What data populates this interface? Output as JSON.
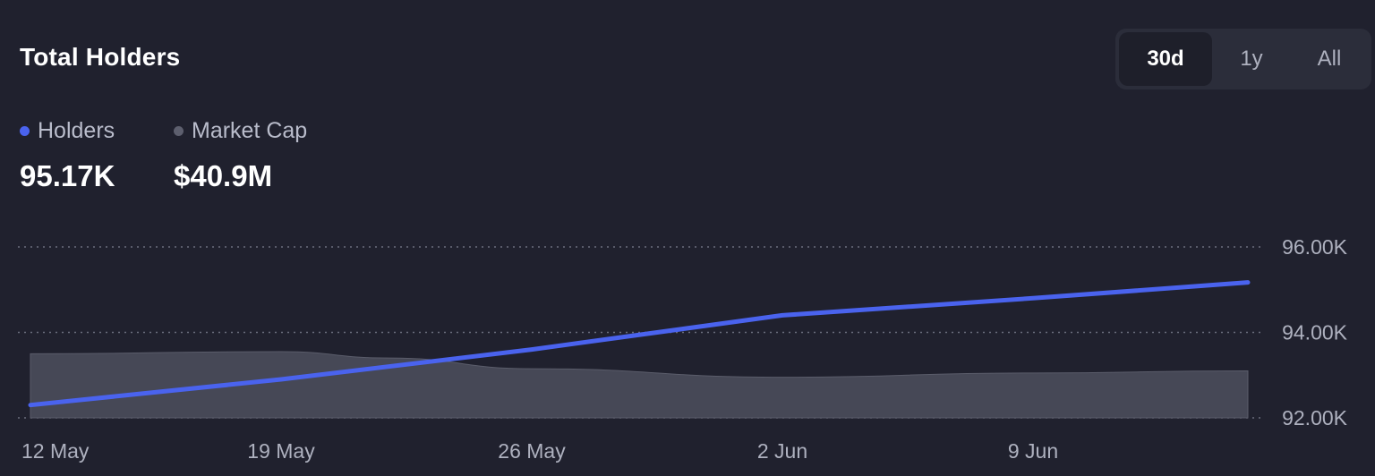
{
  "title": "Total Holders",
  "range_tabs": [
    {
      "label": "30d",
      "active": true
    },
    {
      "label": "1y",
      "active": false
    },
    {
      "label": "All",
      "active": false
    }
  ],
  "legend": [
    {
      "label": "Holders",
      "value": "95.17K",
      "color": "#4a63ee"
    },
    {
      "label": "Market Cap",
      "value": "$40.9M",
      "color": "#5d5f6e"
    }
  ],
  "colors": {
    "background": "#20212e",
    "holders_line": "#4a63ee",
    "market_cap_area": "#494b59",
    "grid": "#6b6e7d"
  },
  "chart_data": {
    "type": "line",
    "x_ticks": [
      "12 May",
      "19 May",
      "26 May",
      "2 Jun",
      "9 Jun"
    ],
    "y_ticks": [
      "96.00K",
      "94.00K",
      "92.00K"
    ],
    "ylim": [
      92000,
      96000
    ],
    "x_range": [
      "2024-05-12",
      "2024-06-15"
    ],
    "grid": "dotted-horizontal",
    "series": [
      {
        "name": "Holders",
        "kind": "line",
        "points": [
          {
            "x": "2024-05-12",
            "y": 92300
          },
          {
            "x": "2024-05-19",
            "y": 92900
          },
          {
            "x": "2024-05-26",
            "y": 93600
          },
          {
            "x": "2024-06-02",
            "y": 94400
          },
          {
            "x": "2024-06-09",
            "y": 94800
          },
          {
            "x": "2024-06-15",
            "y": 95170
          }
        ]
      },
      {
        "name": "Market Cap",
        "kind": "area",
        "points": [
          {
            "x": "2024-05-12",
            "y": 93500
          },
          {
            "x": "2024-05-19",
            "y": 93550
          },
          {
            "x": "2024-05-22",
            "y": 93400
          },
          {
            "x": "2024-05-26",
            "y": 93150
          },
          {
            "x": "2024-06-02",
            "y": 92950
          },
          {
            "x": "2024-06-09",
            "y": 93050
          },
          {
            "x": "2024-06-15",
            "y": 93100
          }
        ]
      }
    ]
  }
}
